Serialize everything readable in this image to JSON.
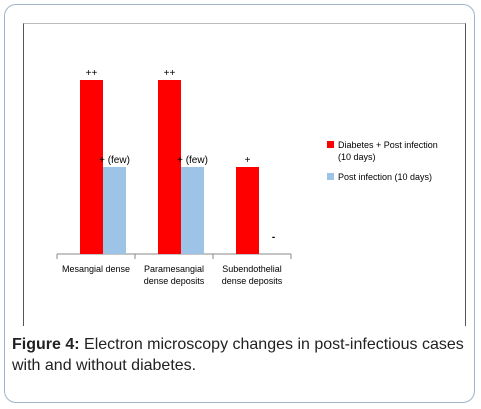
{
  "caption": {
    "label": "Figure 4:",
    "text": "Electron microscopy changes in post-infectious cases with and without diabetes."
  },
  "chart_data": {
    "type": "bar",
    "categories": [
      [
        "Mesangial dense"
      ],
      [
        "Paramesangial",
        "dense deposits"
      ],
      [
        "Subendothelial",
        "dense deposits"
      ]
    ],
    "series": [
      {
        "name": [
          "Diabetes + Post infection",
          "(10 days)"
        ],
        "color": "#ff0000",
        "values": [
          2,
          2,
          1
        ],
        "labels": [
          "++",
          "++",
          "+"
        ]
      },
      {
        "name": [
          "Post infection (10 days)"
        ],
        "color": "#9dc3e6",
        "values": [
          1,
          1,
          0
        ],
        "labels": [
          "+ (few)",
          "+ (few)",
          "-"
        ]
      }
    ],
    "ylim": [
      0,
      2
    ],
    "legend_position": "right"
  }
}
